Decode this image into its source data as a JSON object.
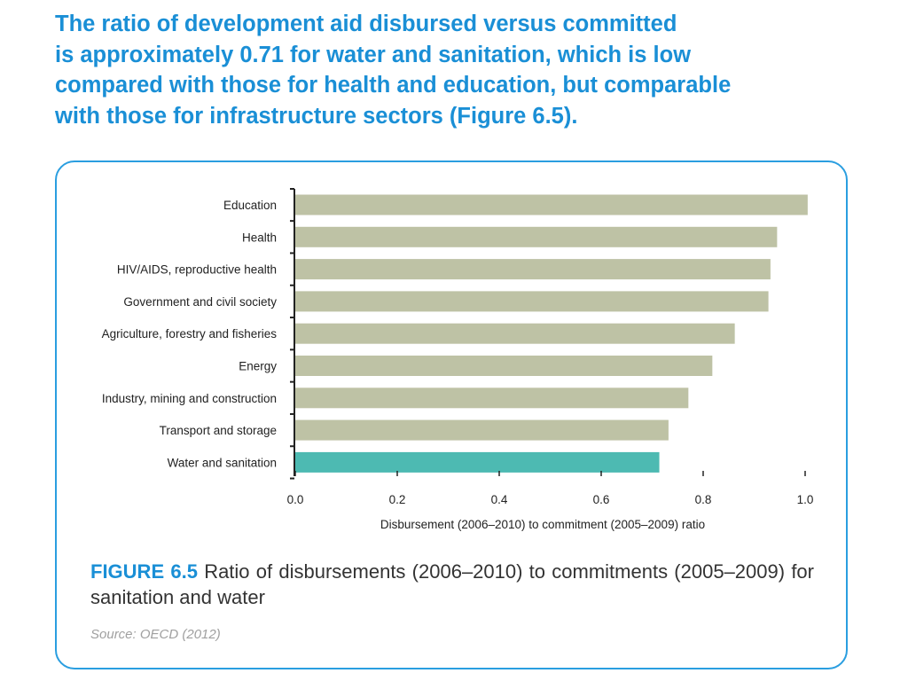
{
  "headline": {
    "lines": [
      "The ratio of development aid disbursed versus committed",
      "is approximately 0.71 for water and sanitation, which is low",
      "compared with those for health and education, but comparable",
      "with those for infrastructure sectors (Figure 6.5)."
    ]
  },
  "figure": {
    "label": "FIGURE 6.5",
    "caption": "Ratio of disbursements (2006–2010) to commitments (2005–2009) for sanitation and water",
    "source": "Source: OECD (2012)"
  },
  "colors": {
    "headline": "#1a8fd6",
    "bar": "#bec2a5",
    "highlight_bar": "#4dbab2",
    "panel_border": "#2a9ee0"
  },
  "chart_data": {
    "type": "bar",
    "orientation": "horizontal",
    "title": "",
    "xlabel": "Disbursement (2006–2010) to commitment (2005–2009) ratio",
    "ylabel": "",
    "xlim": [
      0,
      1.0
    ],
    "ticks": [
      "0.0",
      "0.2",
      "0.4",
      "0.6",
      "0.8",
      "1.0"
    ],
    "tick_values": [
      0,
      0.2,
      0.4,
      0.6,
      0.8,
      1.0
    ],
    "grid": false,
    "legend": "none",
    "categories": [
      "Education",
      "Health",
      "HIV/AIDS, reproductive health",
      "Government and civil society",
      "Agriculture, forestry and fisheries",
      "Energy",
      "Industry, mining and construction",
      "Transport and storage",
      "Water and sanitation"
    ],
    "values": [
      1.005,
      0.945,
      0.932,
      0.928,
      0.862,
      0.818,
      0.771,
      0.732,
      0.714
    ],
    "highlight": "Water and sanitation"
  }
}
